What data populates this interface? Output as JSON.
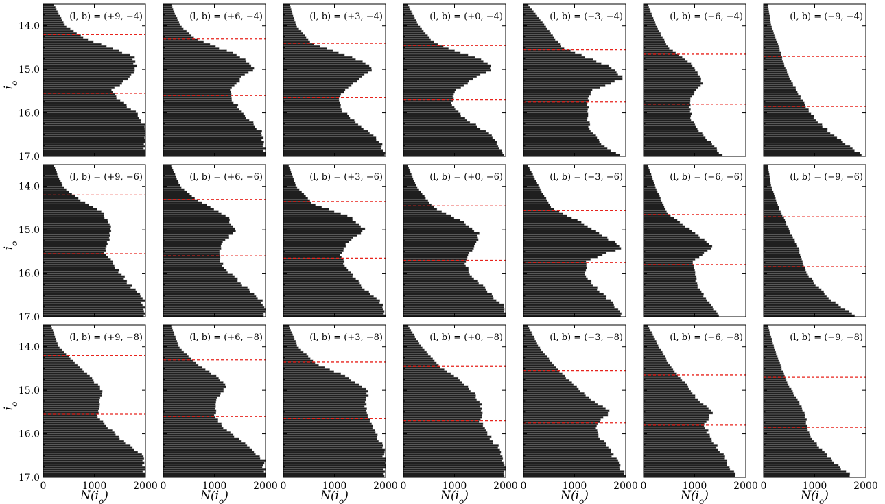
{
  "colors": {
    "bars": "#1f1f1f",
    "bar_edge": "#9a9a9a",
    "reference_lines": "#e8231c",
    "frame": "#000000"
  },
  "axis_titles": {
    "y": "i_o",
    "x": "N(i_o)"
  },
  "chart_data": {
    "type": "bar",
    "orientation": "horizontal histogram",
    "layout": "3 rows x 7 columns",
    "xlim": [
      0,
      2000
    ],
    "xticks": [
      0,
      1000,
      2000
    ],
    "xtick_labels": [
      "0",
      "1000",
      "2000"
    ],
    "ylim": [
      17.0,
      13.5
    ],
    "yticks": [
      14.0,
      15.0,
      16.0,
      17.0
    ],
    "ytick_labels": [
      "14.0",
      "15.0",
      "16.0",
      "17.0"
    ],
    "y_inverted": true,
    "bin_width": 0.05,
    "reference_line_style": "dashed red",
    "panels": [
      {
        "label": "(l, b) = (+9, −4)",
        "l": 9,
        "b": -4,
        "lines": [
          14.2,
          15.55
        ],
        "profile": [
          [
            13.5,
            200
          ],
          [
            14.0,
            430
          ],
          [
            14.3,
            820
          ],
          [
            14.7,
            1750
          ],
          [
            15.0,
            1820
          ],
          [
            15.2,
            1680
          ],
          [
            15.5,
            1320
          ],
          [
            15.7,
            1480
          ],
          [
            16.0,
            1800
          ],
          [
            16.3,
            2000
          ],
          [
            17.0,
            2000
          ]
        ]
      },
      {
        "label": "(l, b) = (+6, −4)",
        "l": 6,
        "b": -4,
        "lines": [
          14.3,
          15.6
        ],
        "profile": [
          [
            13.5,
            150
          ],
          [
            14.0,
            330
          ],
          [
            14.3,
            620
          ],
          [
            14.7,
            1500
          ],
          [
            15.0,
            1780
          ],
          [
            15.2,
            1520
          ],
          [
            15.5,
            1320
          ],
          [
            15.7,
            1350
          ],
          [
            16.0,
            1550
          ],
          [
            16.5,
            1950
          ],
          [
            17.0,
            2000
          ]
        ]
      },
      {
        "label": "(l, b) = (+3, −4)",
        "l": 3,
        "b": -4,
        "lines": [
          14.4,
          15.65
        ],
        "profile": [
          [
            13.5,
            120
          ],
          [
            14.0,
            250
          ],
          [
            14.4,
            550
          ],
          [
            14.8,
            1500
          ],
          [
            15.0,
            1730
          ],
          [
            15.3,
            1400
          ],
          [
            15.6,
            1100
          ],
          [
            15.9,
            1100
          ],
          [
            16.2,
            1400
          ],
          [
            16.6,
            1850
          ],
          [
            17.0,
            2000
          ]
        ]
      },
      {
        "label": "(l, b) = (+0, −4)",
        "l": 0,
        "b": -4,
        "lines": [
          14.45,
          15.7
        ],
        "profile": [
          [
            13.5,
            80
          ],
          [
            14.0,
            300
          ],
          [
            14.4,
            600
          ],
          [
            14.8,
            1550
          ],
          [
            15.0,
            1750
          ],
          [
            15.2,
            1400
          ],
          [
            15.5,
            1000
          ],
          [
            15.8,
            950
          ],
          [
            16.1,
            1150
          ],
          [
            16.5,
            1700
          ],
          [
            17.0,
            2000
          ]
        ]
      },
      {
        "label": "(l, b) = (−3, −4)",
        "l": -3,
        "b": -4,
        "lines": [
          14.55,
          15.75
        ],
        "profile": [
          [
            13.5,
            80
          ],
          [
            14.0,
            420
          ],
          [
            14.5,
            750
          ],
          [
            14.9,
            1600
          ],
          [
            15.2,
            1980
          ],
          [
            15.5,
            1300
          ],
          [
            15.8,
            1250
          ],
          [
            16.1,
            1250
          ],
          [
            16.4,
            1300
          ],
          [
            16.8,
            1600
          ],
          [
            17.0,
            1950
          ]
        ]
      },
      {
        "label": "(l, b) = (−6, −4)",
        "l": -6,
        "b": -4,
        "lines": [
          14.65,
          15.8
        ],
        "profile": [
          [
            13.5,
            80
          ],
          [
            14.0,
            250
          ],
          [
            14.5,
            480
          ],
          [
            14.9,
            950
          ],
          [
            15.3,
            1150
          ],
          [
            15.6,
            950
          ],
          [
            15.9,
            900
          ],
          [
            16.2,
            950
          ],
          [
            16.5,
            1150
          ],
          [
            16.8,
            1400
          ],
          [
            17.0,
            1550
          ]
        ]
      },
      {
        "label": "(l, b) = (−9, −4)",
        "l": -9,
        "b": -4,
        "lines": [
          14.7,
          15.85
        ],
        "profile": [
          [
            13.5,
            80
          ],
          [
            14.0,
            150
          ],
          [
            14.5,
            300
          ],
          [
            14.9,
            400
          ],
          [
            15.3,
            550
          ],
          [
            15.6,
            700
          ],
          [
            15.9,
            850
          ],
          [
            16.2,
            1050
          ],
          [
            16.5,
            1350
          ],
          [
            16.8,
            1700
          ],
          [
            17.0,
            1950
          ]
        ]
      },
      {
        "label": "(l, b) = (+9, −6)",
        "l": 9,
        "b": -6,
        "lines": [
          14.2,
          15.55
        ],
        "profile": [
          [
            13.5,
            200
          ],
          [
            14.0,
            380
          ],
          [
            14.3,
            700
          ],
          [
            14.6,
            1150
          ],
          [
            14.9,
            1320
          ],
          [
            15.2,
            1280
          ],
          [
            15.5,
            1200
          ],
          [
            15.8,
            1380
          ],
          [
            16.2,
            1650
          ],
          [
            16.6,
            1950
          ],
          [
            17.0,
            2000
          ]
        ]
      },
      {
        "label": "(l, b) = (+6, −6)",
        "l": 6,
        "b": -6,
        "lines": [
          14.3,
          15.6
        ],
        "profile": [
          [
            13.5,
            150
          ],
          [
            14.0,
            330
          ],
          [
            14.3,
            650
          ],
          [
            14.7,
            1250
          ],
          [
            15.0,
            1420
          ],
          [
            15.3,
            1150
          ],
          [
            15.6,
            1080
          ],
          [
            15.9,
            1200
          ],
          [
            16.2,
            1500
          ],
          [
            16.6,
            1900
          ],
          [
            17.0,
            2000
          ]
        ]
      },
      {
        "label": "(l, b) = (+3, −6)",
        "l": 3,
        "b": -6,
        "lines": [
          14.35,
          15.65
        ],
        "profile": [
          [
            13.5,
            100
          ],
          [
            14.0,
            250
          ],
          [
            14.4,
            580
          ],
          [
            14.7,
            1300
          ],
          [
            15.0,
            1600
          ],
          [
            15.3,
            1250
          ],
          [
            15.6,
            1120
          ],
          [
            15.9,
            1250
          ],
          [
            16.3,
            1550
          ],
          [
            16.7,
            1950
          ],
          [
            17.0,
            2000
          ]
        ]
      },
      {
        "label": "(l, b) = (+0, −6)",
        "l": 0,
        "b": -6,
        "lines": [
          14.45,
          15.7
        ],
        "profile": [
          [
            13.5,
            80
          ],
          [
            14.0,
            250
          ],
          [
            14.5,
            600
          ],
          [
            14.8,
            1150
          ],
          [
            15.1,
            1480
          ],
          [
            15.4,
            1400
          ],
          [
            15.7,
            1200
          ],
          [
            16.0,
            1300
          ],
          [
            16.4,
            1650
          ],
          [
            16.8,
            2000
          ],
          [
            17.0,
            2000
          ]
        ]
      },
      {
        "label": "(l, b) = (−3, −6)",
        "l": -3,
        "b": -6,
        "lines": [
          14.55,
          15.75
        ],
        "profile": [
          [
            13.5,
            80
          ],
          [
            14.0,
            300
          ],
          [
            14.5,
            550
          ],
          [
            14.8,
            1100
          ],
          [
            15.1,
            1500
          ],
          [
            15.4,
            1950
          ],
          [
            15.7,
            1250
          ],
          [
            16.0,
            1200
          ],
          [
            16.3,
            1400
          ],
          [
            16.7,
            1750
          ],
          [
            17.0,
            1950
          ]
        ]
      },
      {
        "label": "(l, b) = (−6, −6)",
        "l": -6,
        "b": -6,
        "lines": [
          14.65,
          15.8
        ],
        "profile": [
          [
            13.5,
            80
          ],
          [
            14.0,
            230
          ],
          [
            14.6,
            450
          ],
          [
            14.9,
            800
          ],
          [
            15.2,
            1150
          ],
          [
            15.4,
            1350
          ],
          [
            15.7,
            980
          ],
          [
            16.0,
            1000
          ],
          [
            16.3,
            1050
          ],
          [
            16.7,
            1300
          ],
          [
            17.0,
            1500
          ]
        ]
      },
      {
        "label": "(l, b) = (−9, −6)",
        "l": -9,
        "b": -6,
        "lines": [
          14.7,
          15.85
        ],
        "profile": [
          [
            13.5,
            80
          ],
          [
            14.0,
            150
          ],
          [
            14.5,
            300
          ],
          [
            15.0,
            500
          ],
          [
            15.4,
            680
          ],
          [
            15.7,
            740
          ],
          [
            16.0,
            850
          ],
          [
            16.3,
            1050
          ],
          [
            16.6,
            1300
          ],
          [
            16.8,
            1550
          ],
          [
            17.0,
            1800
          ]
        ]
      },
      {
        "label": "(l, b) = (+9, −8)",
        "l": 9,
        "b": -8,
        "lines": [
          14.2,
          15.55
        ],
        "profile": [
          [
            13.5,
            150
          ],
          [
            14.0,
            300
          ],
          [
            14.4,
            650
          ],
          [
            14.7,
            920
          ],
          [
            15.0,
            1150
          ],
          [
            15.3,
            1100
          ],
          [
            15.6,
            1050
          ],
          [
            15.9,
            1300
          ],
          [
            16.2,
            1600
          ],
          [
            16.5,
            1950
          ],
          [
            17.0,
            2000
          ]
        ]
      },
      {
        "label": "(l, b) = (+6, −8)",
        "l": 6,
        "b": -8,
        "lines": [
          14.3,
          15.6
        ],
        "profile": [
          [
            13.5,
            150
          ],
          [
            14.0,
            300
          ],
          [
            14.4,
            650
          ],
          [
            14.7,
            1050
          ],
          [
            14.9,
            1250
          ],
          [
            15.2,
            1050
          ],
          [
            15.6,
            1000
          ],
          [
            15.9,
            1200
          ],
          [
            16.2,
            1550
          ],
          [
            16.6,
            1950
          ],
          [
            17.0,
            2000
          ]
        ]
      },
      {
        "label": "(l, b) = (+3, −8)",
        "l": 3,
        "b": -8,
        "lines": [
          14.35,
          15.65
        ],
        "profile": [
          [
            13.5,
            100
          ],
          [
            14.0,
            280
          ],
          [
            14.4,
            650
          ],
          [
            14.7,
            1250
          ],
          [
            15.0,
            1650
          ],
          [
            15.3,
            1600
          ],
          [
            15.6,
            1650
          ],
          [
            15.9,
            1750
          ],
          [
            16.2,
            1900
          ],
          [
            16.6,
            2000
          ],
          [
            17.0,
            2000
          ]
        ]
      },
      {
        "label": "(l, b) = (+0, −8)",
        "l": 0,
        "b": -8,
        "lines": [
          14.45,
          15.7
        ],
        "profile": [
          [
            13.5,
            80
          ],
          [
            14.0,
            350
          ],
          [
            14.5,
            750
          ],
          [
            14.8,
            1150
          ],
          [
            15.1,
            1400
          ],
          [
            15.4,
            1550
          ],
          [
            15.7,
            1500
          ],
          [
            16.0,
            1650
          ],
          [
            16.4,
            1900
          ],
          [
            17.0,
            2000
          ]
        ]
      },
      {
        "label": "(l, b) = (−3, −8)",
        "l": -3,
        "b": -8,
        "lines": [
          14.55,
          15.75
        ],
        "profile": [
          [
            13.5,
            80
          ],
          [
            14.0,
            300
          ],
          [
            14.5,
            650
          ],
          [
            14.9,
            1000
          ],
          [
            15.2,
            1300
          ],
          [
            15.5,
            1700
          ],
          [
            15.8,
            1400
          ],
          [
            16.1,
            1500
          ],
          [
            16.4,
            1700
          ],
          [
            16.8,
            1900
          ],
          [
            17.0,
            2000
          ]
        ]
      },
      {
        "label": "(l, b) = (−6, −8)",
        "l": -6,
        "b": -8,
        "lines": [
          14.65,
          15.8
        ],
        "profile": [
          [
            13.5,
            80
          ],
          [
            14.0,
            300
          ],
          [
            14.5,
            550
          ],
          [
            14.9,
            850
          ],
          [
            15.2,
            1050
          ],
          [
            15.5,
            1350
          ],
          [
            15.8,
            1200
          ],
          [
            16.1,
            1300
          ],
          [
            16.4,
            1500
          ],
          [
            16.8,
            1700
          ],
          [
            17.0,
            1800
          ]
        ]
      },
      {
        "label": "(l, b) = (−9, −8)",
        "l": -9,
        "b": -8,
        "lines": [
          14.7,
          15.85
        ],
        "profile": [
          [
            13.5,
            80
          ],
          [
            14.0,
            200
          ],
          [
            14.5,
            350
          ],
          [
            14.9,
            500
          ],
          [
            15.3,
            700
          ],
          [
            15.6,
            820
          ],
          [
            15.9,
            850
          ],
          [
            16.2,
            1000
          ],
          [
            16.5,
            1250
          ],
          [
            16.8,
            1500
          ],
          [
            17.0,
            1750
          ]
        ]
      }
    ]
  }
}
